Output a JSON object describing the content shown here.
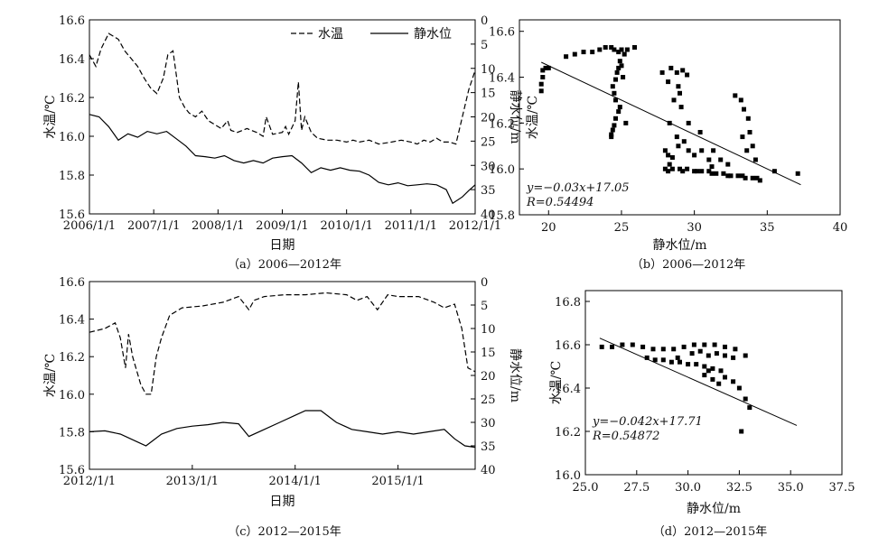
{
  "chart_data": [
    {
      "id": "a",
      "type": "line",
      "caption": "（a）2006—2012年",
      "xlabel": "日期",
      "ylabel_left": "水温/℃",
      "ylabel_right": "静水位/m",
      "x_ticks": [
        "2006/1/1",
        "2007/1/1",
        "2008/1/1",
        "2009/1/1",
        "2010/1/1",
        "2011/1/1",
        "2012/1/1"
      ],
      "xlim": [
        2006.0,
        2012.0
      ],
      "ylim_left": [
        15.6,
        16.6
      ],
      "yticks_left": [
        "15.6",
        "15.8",
        "16.0",
        "16.2",
        "16.4",
        "16.6"
      ],
      "ylim_right": [
        40,
        0
      ],
      "yticks_right": [
        "0",
        "5",
        "10",
        "15",
        "20",
        "25",
        "30",
        "35",
        "40"
      ],
      "legend": [
        "水温",
        "静水位"
      ],
      "legend_position": "top-right",
      "series": [
        {
          "name": "水温",
          "style": "dashed",
          "axis": "left",
          "x": [
            2006.0,
            2006.1,
            2006.18,
            2006.3,
            2006.45,
            2006.55,
            2006.65,
            2006.75,
            2006.85,
            2006.95,
            2007.05,
            2007.15,
            2007.22,
            2007.3,
            2007.4,
            2007.48,
            2007.55,
            2007.65,
            2007.75,
            2007.85,
            2007.95,
            2008.05,
            2008.15,
            2008.2,
            2008.3,
            2008.45,
            2008.6,
            2008.7,
            2008.75,
            2008.85,
            2009.0,
            2009.05,
            2009.1,
            2009.2,
            2009.25,
            2009.3,
            2009.35,
            2009.45,
            2009.55,
            2009.7,
            2009.85,
            2010.0,
            2010.1,
            2010.2,
            2010.35,
            2010.5,
            2010.7,
            2010.85,
            2011.0,
            2011.1,
            2011.2,
            2011.3,
            2011.4,
            2011.5,
            2011.6,
            2011.7,
            2011.8,
            2011.9,
            2012.0
          ],
          "y": [
            16.42,
            16.36,
            16.45,
            16.53,
            16.5,
            16.44,
            16.4,
            16.36,
            16.3,
            16.25,
            16.22,
            16.3,
            16.42,
            16.44,
            16.2,
            16.15,
            16.12,
            16.1,
            16.13,
            16.08,
            16.06,
            16.04,
            16.08,
            16.03,
            16.02,
            16.04,
            16.02,
            16.0,
            16.1,
            16.01,
            16.02,
            16.05,
            16.01,
            16.08,
            16.28,
            16.03,
            16.1,
            16.02,
            15.99,
            15.98,
            15.98,
            15.97,
            15.98,
            15.97,
            15.98,
            15.96,
            15.97,
            15.98,
            15.97,
            15.96,
            15.98,
            15.97,
            15.99,
            15.97,
            15.97,
            15.96,
            16.1,
            16.24,
            16.34
          ]
        },
        {
          "name": "静水位",
          "style": "solid",
          "axis": "right",
          "x": [
            2006.0,
            2006.15,
            2006.3,
            2006.45,
            2006.6,
            2006.75,
            2006.9,
            2007.05,
            2007.2,
            2007.35,
            2007.5,
            2007.65,
            2007.8,
            2007.95,
            2008.1,
            2008.25,
            2008.4,
            2008.55,
            2008.7,
            2008.85,
            2009.0,
            2009.15,
            2009.3,
            2009.45,
            2009.6,
            2009.75,
            2009.9,
            2010.05,
            2010.2,
            2010.35,
            2010.5,
            2010.65,
            2010.8,
            2010.95,
            2011.1,
            2011.25,
            2011.4,
            2011.55,
            2011.65,
            2011.8,
            2011.9,
            2012.0
          ],
          "y": [
            19.5,
            20.0,
            22.0,
            24.8,
            23.5,
            24.2,
            23.0,
            23.5,
            23.0,
            24.5,
            26.0,
            28.0,
            28.2,
            28.5,
            28.0,
            29.0,
            29.5,
            29.0,
            29.5,
            28.5,
            28.2,
            28.0,
            29.5,
            31.5,
            30.5,
            31.0,
            30.5,
            31.0,
            31.2,
            32.0,
            33.5,
            34.0,
            33.6,
            34.2,
            34.0,
            33.8,
            34.0,
            35.0,
            37.8,
            36.5,
            35.2,
            34.0
          ]
        }
      ]
    },
    {
      "id": "b",
      "type": "scatter",
      "caption": "（b）2006—2012年",
      "xlabel": "静水位/m",
      "ylabel": "水温/℃",
      "xlim": [
        18,
        40
      ],
      "xticks": [
        "20",
        "25",
        "30",
        "35",
        "40"
      ],
      "ylim": [
        15.8,
        16.65
      ],
      "yticks": [
        "15.8",
        "16.0",
        "16.2",
        "16.4",
        "16.6"
      ],
      "annotation_equation": "y=−0.03x+17.05",
      "annotation_r": "R=0.54494",
      "regression": {
        "slope": -0.03,
        "intercept": 17.05,
        "x_range": [
          19.5,
          37.3
        ]
      },
      "points": [
        [
          19.5,
          16.34
        ],
        [
          19.5,
          16.37
        ],
        [
          19.6,
          16.4
        ],
        [
          19.6,
          16.43
        ],
        [
          19.8,
          16.44
        ],
        [
          20.0,
          16.44
        ],
        [
          21.2,
          16.49
        ],
        [
          21.8,
          16.5
        ],
        [
          22.4,
          16.51
        ],
        [
          23.0,
          16.51
        ],
        [
          23.5,
          16.52
        ],
        [
          23.9,
          16.53
        ],
        [
          24.3,
          16.53
        ],
        [
          24.5,
          16.52
        ],
        [
          24.8,
          16.51
        ],
        [
          25.0,
          16.52
        ],
        [
          25.4,
          16.52
        ],
        [
          25.9,
          16.53
        ],
        [
          24.3,
          16.14
        ],
        [
          24.3,
          16.15
        ],
        [
          24.4,
          16.17
        ],
        [
          24.5,
          16.19
        ],
        [
          24.6,
          16.22
        ],
        [
          24.8,
          16.25
        ],
        [
          24.9,
          16.27
        ],
        [
          24.6,
          16.3
        ],
        [
          24.5,
          16.33
        ],
        [
          24.4,
          16.36
        ],
        [
          24.6,
          16.39
        ],
        [
          24.7,
          16.42
        ],
        [
          24.8,
          16.44
        ],
        [
          24.9,
          16.47
        ],
        [
          25.0,
          16.45
        ],
        [
          25.2,
          16.5
        ],
        [
          25.1,
          16.4
        ],
        [
          25.3,
          16.2
        ],
        [
          27.8,
          16.42
        ],
        [
          28.4,
          16.44
        ],
        [
          28.8,
          16.42
        ],
        [
          29.2,
          16.43
        ],
        [
          29.5,
          16.41
        ],
        [
          28.2,
          16.38
        ],
        [
          28.9,
          16.36
        ],
        [
          29.0,
          16.33
        ],
        [
          28.6,
          16.3
        ],
        [
          29.1,
          16.27
        ],
        [
          28.3,
          16.2
        ],
        [
          28.8,
          16.14
        ],
        [
          28.0,
          16.08
        ],
        [
          28.2,
          16.06
        ],
        [
          28.5,
          16.05
        ],
        [
          28.3,
          16.02
        ],
        [
          28.9,
          16.1
        ],
        [
          29.3,
          16.12
        ],
        [
          29.6,
          16.08
        ],
        [
          30.0,
          16.06
        ],
        [
          30.5,
          16.08
        ],
        [
          31.0,
          16.04
        ],
        [
          31.3,
          16.08
        ],
        [
          31.8,
          16.04
        ],
        [
          28.0,
          16.0
        ],
        [
          28.5,
          16.0
        ],
        [
          29.0,
          16.0
        ],
        [
          29.5,
          16.0
        ],
        [
          30.0,
          15.99
        ],
        [
          30.5,
          15.99
        ],
        [
          31.0,
          15.99
        ],
        [
          31.5,
          15.98
        ],
        [
          32.0,
          15.98
        ],
        [
          32.5,
          15.97
        ],
        [
          33.0,
          15.97
        ],
        [
          33.5,
          15.96
        ],
        [
          34.0,
          15.96
        ],
        [
          34.5,
          15.95
        ],
        [
          28.2,
          15.99
        ],
        [
          29.2,
          15.99
        ],
        [
          30.2,
          15.99
        ],
        [
          31.2,
          15.98
        ],
        [
          32.3,
          15.97
        ],
        [
          33.3,
          15.97
        ],
        [
          34.3,
          15.96
        ],
        [
          32.8,
          16.32
        ],
        [
          33.2,
          16.3
        ],
        [
          33.4,
          16.26
        ],
        [
          33.7,
          16.22
        ],
        [
          33.8,
          16.16
        ],
        [
          34.0,
          16.1
        ],
        [
          34.2,
          16.04
        ],
        [
          33.3,
          16.14
        ],
        [
          33.6,
          16.08
        ],
        [
          32.3,
          16.02
        ],
        [
          31.2,
          16.01
        ],
        [
          35.5,
          15.99
        ],
        [
          37.1,
          15.98
        ],
        [
          30.4,
          16.16
        ],
        [
          29.6,
          16.2
        ]
      ]
    },
    {
      "id": "c",
      "type": "line",
      "caption": "（c）2012—2015年",
      "xlabel": "日期",
      "ylabel_left": "水温/℃",
      "ylabel_right": "静水位/m",
      "x_ticks": [
        "2012/1/1",
        "2013/1/1",
        "2014/1/1",
        "2015/1/1"
      ],
      "x_tick_values": [
        2012.0,
        2013.0,
        2014.0,
        2015.0
      ],
      "xlim": [
        2012.0,
        2015.75
      ],
      "ylim_left": [
        15.6,
        16.6
      ],
      "yticks_left": [
        "15.6",
        "15.8",
        "16.0",
        "16.2",
        "16.4",
        "16.6"
      ],
      "ylim_right": [
        40,
        0
      ],
      "yticks_right": [
        "0",
        "5",
        "10",
        "15",
        "20",
        "25",
        "30",
        "35",
        "40"
      ],
      "series": [
        {
          "name": "水温",
          "style": "dashed",
          "axis": "left",
          "x": [
            2012.0,
            2012.15,
            2012.25,
            2012.3,
            2012.35,
            2012.38,
            2012.42,
            2012.5,
            2012.55,
            2012.6,
            2012.65,
            2012.7,
            2012.78,
            2012.9,
            2013.1,
            2013.3,
            2013.45,
            2013.55,
            2013.6,
            2013.7,
            2013.9,
            2014.1,
            2014.3,
            2014.5,
            2014.6,
            2014.7,
            2014.8,
            2014.9,
            2015.0,
            2015.2,
            2015.35,
            2015.45,
            2015.55,
            2015.62,
            2015.68,
            2015.75
          ],
          "y": [
            16.33,
            16.35,
            16.38,
            16.3,
            16.14,
            16.32,
            16.2,
            16.05,
            16.0,
            16.0,
            16.2,
            16.3,
            16.42,
            16.46,
            16.47,
            16.49,
            16.52,
            16.45,
            16.5,
            16.52,
            16.53,
            16.53,
            16.54,
            16.53,
            16.5,
            16.52,
            16.45,
            16.53,
            16.52,
            16.52,
            16.49,
            16.46,
            16.48,
            16.35,
            16.14,
            16.12
          ]
        },
        {
          "name": "静水位",
          "style": "solid",
          "axis": "right",
          "x": [
            2012.0,
            2012.15,
            2012.3,
            2012.45,
            2012.55,
            2012.7,
            2012.85,
            2013.0,
            2013.15,
            2013.3,
            2013.45,
            2013.55,
            2013.7,
            2013.85,
            2014.0,
            2014.1,
            2014.25,
            2014.4,
            2014.55,
            2014.7,
            2014.85,
            2015.0,
            2015.15,
            2015.3,
            2015.45,
            2015.55,
            2015.65,
            2015.75
          ],
          "y": [
            32.0,
            31.8,
            32.5,
            34.0,
            35.0,
            32.5,
            31.3,
            30.8,
            30.5,
            30.0,
            30.3,
            33.0,
            31.5,
            30.0,
            28.5,
            27.5,
            27.5,
            30.0,
            31.5,
            32.0,
            32.5,
            32.0,
            32.5,
            32.0,
            31.5,
            33.5,
            35.0,
            35.3
          ]
        }
      ]
    },
    {
      "id": "d",
      "type": "scatter",
      "caption": "（d）2012—2015年",
      "xlabel": "静水位/m",
      "ylabel": "水温/℃",
      "xlim": [
        25.0,
        37.5
      ],
      "xticks": [
        "25.0",
        "27.5",
        "30.0",
        "32.5",
        "35.0",
        "37.5"
      ],
      "ylim": [
        16.0,
        16.85
      ],
      "yticks": [
        "16.0",
        "16.2",
        "16.4",
        "16.6",
        "16.8"
      ],
      "annotation_equation": "y=−0.042x+17.71",
      "annotation_r": "R=0.54872",
      "regression": {
        "slope": -0.042,
        "intercept": 17.71,
        "x_range": [
          25.7,
          35.3
        ]
      },
      "points": [
        [
          25.8,
          16.59
        ],
        [
          26.3,
          16.59
        ],
        [
          26.8,
          16.6
        ],
        [
          27.3,
          16.6
        ],
        [
          27.8,
          16.59
        ],
        [
          28.3,
          16.58
        ],
        [
          28.8,
          16.58
        ],
        [
          29.3,
          16.58
        ],
        [
          29.8,
          16.59
        ],
        [
          30.3,
          16.6
        ],
        [
          30.8,
          16.6
        ],
        [
          31.3,
          16.6
        ],
        [
          31.8,
          16.59
        ],
        [
          32.3,
          16.58
        ],
        [
          28.0,
          16.54
        ],
        [
          28.4,
          16.53
        ],
        [
          28.8,
          16.53
        ],
        [
          29.2,
          16.52
        ],
        [
          29.6,
          16.52
        ],
        [
          30.0,
          16.51
        ],
        [
          30.4,
          16.51
        ],
        [
          30.8,
          16.5
        ],
        [
          31.2,
          16.49
        ],
        [
          31.6,
          16.48
        ],
        [
          30.2,
          16.56
        ],
        [
          30.6,
          16.57
        ],
        [
          31.0,
          16.55
        ],
        [
          31.4,
          16.56
        ],
        [
          31.8,
          16.55
        ],
        [
          32.2,
          16.54
        ],
        [
          30.8,
          16.46
        ],
        [
          31.2,
          16.44
        ],
        [
          31.5,
          16.42
        ],
        [
          31.8,
          16.45
        ],
        [
          32.2,
          16.43
        ],
        [
          32.5,
          16.4
        ],
        [
          32.8,
          16.35
        ],
        [
          33.0,
          16.31
        ],
        [
          32.6,
          16.2
        ],
        [
          32.8,
          16.55
        ],
        [
          31.0,
          16.48
        ],
        [
          29.5,
          16.54
        ]
      ]
    }
  ]
}
